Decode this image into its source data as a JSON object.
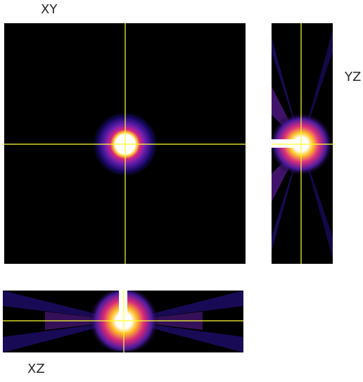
{
  "views": {
    "xy": {
      "title": "XY"
    },
    "yz": {
      "title": "YZ"
    },
    "xz": {
      "title": "XZ"
    }
  },
  "colors": {
    "background": "#000000",
    "crosshair": "#ffff33",
    "colormap": [
      "#000000",
      "#1a0a6b",
      "#6a1fb0",
      "#c2187d",
      "#ff4e1f",
      "#ffb000",
      "#ffffff"
    ]
  }
}
